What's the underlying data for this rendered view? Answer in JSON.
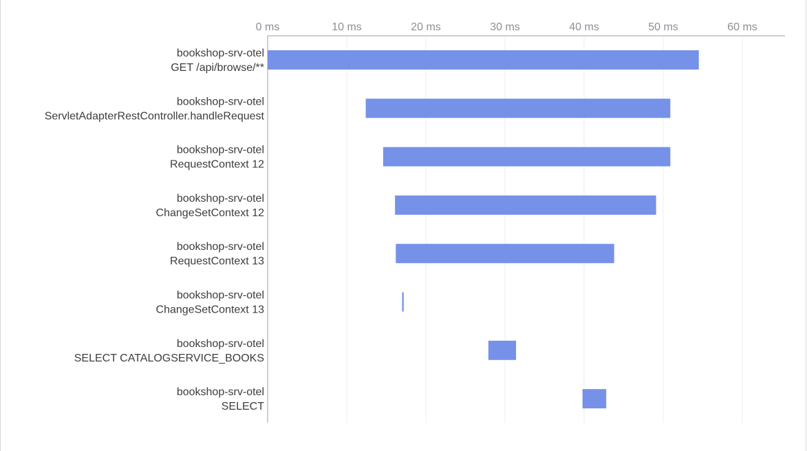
{
  "chart_data": {
    "type": "bar",
    "orientation": "horizontal",
    "subtype": "waterfall-timeline",
    "title": "",
    "xlabel": "",
    "ylabel": "",
    "xlim": [
      0,
      66
    ],
    "x_ticks": [
      0,
      10,
      20,
      30,
      40,
      50,
      60
    ],
    "x_tick_labels": [
      "0 ms",
      "10 ms",
      "20 ms",
      "30 ms",
      "40 ms",
      "50 ms",
      "60 ms"
    ],
    "x_axis_position": "top",
    "grid": true,
    "bar_color": "#7592e8",
    "spans": [
      {
        "service": "bookshop-srv-otel",
        "operation": "GET /api/browse/**",
        "start": 0.0,
        "end": 54.5
      },
      {
        "service": "bookshop-srv-otel",
        "operation": "ServletAdapterRestController.handleRequest",
        "start": 12.4,
        "end": 50.9
      },
      {
        "service": "bookshop-srv-otel",
        "operation": "RequestContext 12",
        "start": 14.6,
        "end": 50.9
      },
      {
        "service": "bookshop-srv-otel",
        "operation": "ChangeSetContext 12",
        "start": 16.1,
        "end": 49.1
      },
      {
        "service": "bookshop-srv-otel",
        "operation": "RequestContext 13",
        "start": 16.2,
        "end": 43.8
      },
      {
        "service": "bookshop-srv-otel",
        "operation": "ChangeSetContext 13",
        "start": 17.0,
        "end": 17.2
      },
      {
        "service": "bookshop-srv-otel",
        "operation": "SELECT CATALOGSERVICE_BOOKS",
        "start": 27.9,
        "end": 31.4
      },
      {
        "service": "bookshop-srv-otel",
        "operation": "SELECT",
        "start": 39.8,
        "end": 42.8
      }
    ]
  }
}
